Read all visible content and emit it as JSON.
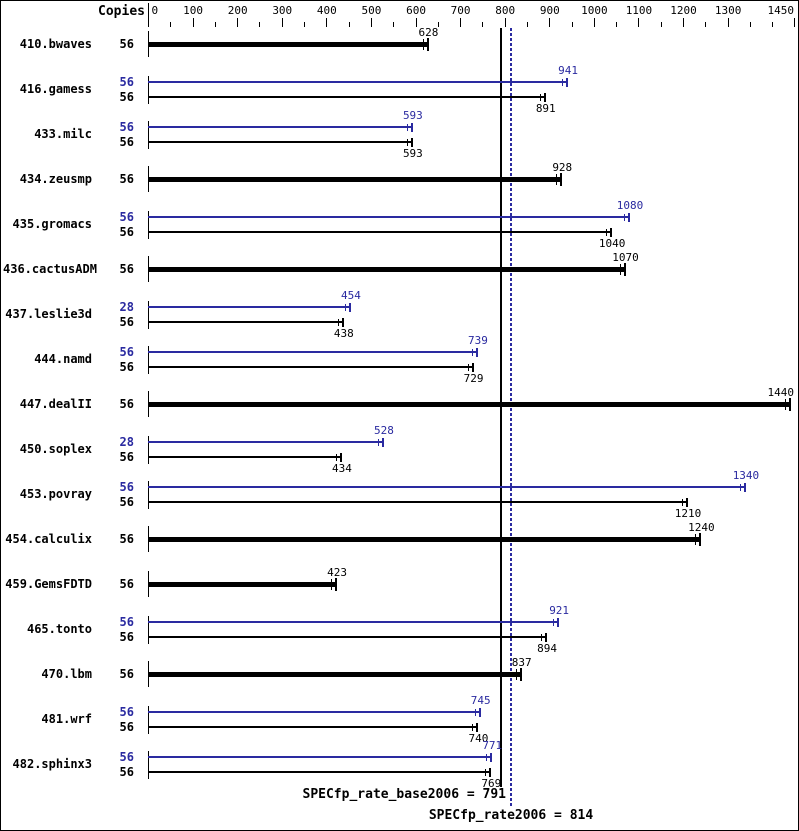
{
  "header": {
    "copies_label": "Copies"
  },
  "chart_data": {
    "type": "bar",
    "orientation": "horizontal",
    "title": "",
    "xlabel": "",
    "ylabel": "",
    "xlim": [
      0,
      1450
    ],
    "grid": false,
    "axis": {
      "major_labels": [
        0,
        100,
        200,
        300,
        400,
        500,
        600,
        700,
        800,
        900,
        1000,
        1100,
        1200,
        1300,
        1450
      ],
      "minor_step": 50
    },
    "colors": {
      "base": "#000000",
      "peak": "#2a2aa0"
    },
    "reference_lines": [
      {
        "label": "SPECfp_rate_base2006 = 791",
        "value": 791,
        "style": "solid",
        "color": "#000000"
      },
      {
        "label": "SPECfp_rate2006 = 814",
        "value": 814,
        "style": "dotted",
        "color": "#2a2aa0"
      }
    ],
    "benchmarks": [
      {
        "name": "410.bwaves",
        "bars": [
          {
            "series": "base",
            "copies": "56",
            "value": 628,
            "thick": true
          }
        ]
      },
      {
        "name": "416.gamess",
        "bars": [
          {
            "series": "peak",
            "copies": "56",
            "value": 941
          },
          {
            "series": "base",
            "copies": "56",
            "value": 891
          }
        ]
      },
      {
        "name": "433.milc",
        "bars": [
          {
            "series": "peak",
            "copies": "56",
            "value": 593
          },
          {
            "series": "base",
            "copies": "56",
            "value": 593
          }
        ]
      },
      {
        "name": "434.zeusmp",
        "bars": [
          {
            "series": "base",
            "copies": "56",
            "value": 928,
            "thick": true
          }
        ]
      },
      {
        "name": "435.gromacs",
        "bars": [
          {
            "series": "peak",
            "copies": "56",
            "value": 1080
          },
          {
            "series": "base",
            "copies": "56",
            "value": 1040
          }
        ]
      },
      {
        "name": "436.cactusADM",
        "bars": [
          {
            "series": "base",
            "copies": "56",
            "value": 1070,
            "thick": true
          }
        ]
      },
      {
        "name": "437.leslie3d",
        "bars": [
          {
            "series": "peak",
            "copies": "28",
            "value": 454
          },
          {
            "series": "base",
            "copies": "56",
            "value": 438
          }
        ]
      },
      {
        "name": "444.namd",
        "bars": [
          {
            "series": "peak",
            "copies": "56",
            "value": 739
          },
          {
            "series": "base",
            "copies": "56",
            "value": 729
          }
        ]
      },
      {
        "name": "447.dealII",
        "bars": [
          {
            "series": "base",
            "copies": "56",
            "value": 1440,
            "thick": true
          }
        ]
      },
      {
        "name": "450.soplex",
        "bars": [
          {
            "series": "peak",
            "copies": "28",
            "value": 528
          },
          {
            "series": "base",
            "copies": "56",
            "value": 434
          }
        ]
      },
      {
        "name": "453.povray",
        "bars": [
          {
            "series": "peak",
            "copies": "56",
            "value": 1340
          },
          {
            "series": "base",
            "copies": "56",
            "value": 1210
          }
        ]
      },
      {
        "name": "454.calculix",
        "bars": [
          {
            "series": "base",
            "copies": "56",
            "value": 1240,
            "thick": true
          }
        ]
      },
      {
        "name": "459.GemsFDTD",
        "bars": [
          {
            "series": "base",
            "copies": "56",
            "value": 423,
            "thick": true
          }
        ]
      },
      {
        "name": "465.tonto",
        "bars": [
          {
            "series": "peak",
            "copies": "56",
            "value": 921
          },
          {
            "series": "base",
            "copies": "56",
            "value": 894
          }
        ]
      },
      {
        "name": "470.lbm",
        "bars": [
          {
            "series": "base",
            "copies": "56",
            "value": 837,
            "thick": true
          }
        ]
      },
      {
        "name": "481.wrf",
        "bars": [
          {
            "series": "peak",
            "copies": "56",
            "value": 745
          },
          {
            "series": "base",
            "copies": "56",
            "value": 740
          }
        ]
      },
      {
        "name": "482.sphinx3",
        "bars": [
          {
            "series": "peak",
            "copies": "56",
            "value": 771
          },
          {
            "series": "base",
            "copies": "56",
            "value": 769
          }
        ]
      }
    ]
  }
}
